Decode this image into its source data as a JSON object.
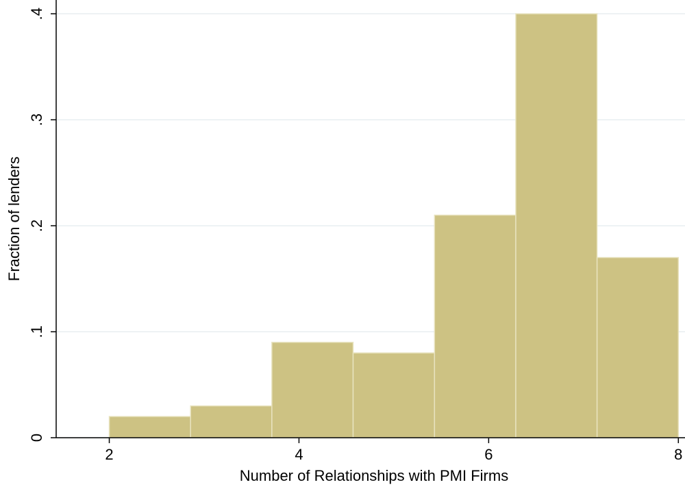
{
  "chart_data": {
    "type": "histogram",
    "x_label": "Number of Relationships with PMI Firms",
    "y_label": "Fraction of lenders",
    "bins": [
      2,
      2.857,
      3.714,
      4.571,
      5.429,
      6.286,
      7.143,
      8
    ],
    "values": [
      0.02,
      0.03,
      0.09,
      0.08,
      0.21,
      0.4,
      0.17
    ],
    "color": "#cdc283",
    "xlim": [
      1.44,
      8.07
    ],
    "xticks": [
      2,
      4,
      6,
      8
    ],
    "ylim": [
      0,
      0.413
    ],
    "yticks": [
      0,
      {
        "value": 0.1,
        "label": ".1"
      },
      {
        "value": 0.2,
        "label": ".2"
      },
      {
        "value": 0.3,
        "label": ".3"
      },
      {
        "value": 0.4,
        "label": ".4"
      }
    ],
    "grid": true
  }
}
